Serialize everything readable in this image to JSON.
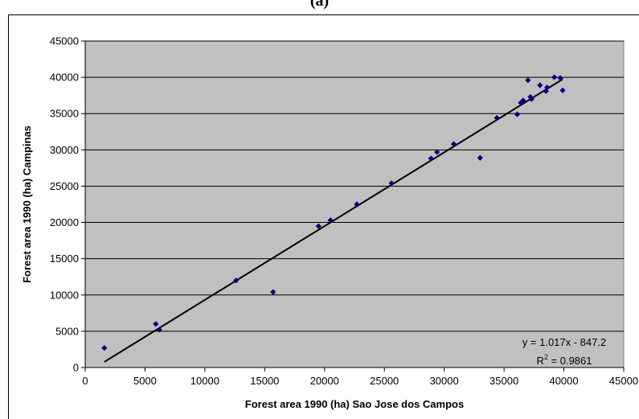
{
  "caption": "(a)",
  "chart_data": {
    "type": "scatter",
    "title": "",
    "xlabel": "Forest area 1990 (ha) Sao Jose dos Campos",
    "ylabel": "Forest area 1990 (ha) Campinas",
    "xlim": [
      0,
      45000
    ],
    "ylim": [
      0,
      45000
    ],
    "x_ticks": [
      0,
      5000,
      10000,
      15000,
      20000,
      25000,
      30000,
      35000,
      40000,
      45000
    ],
    "y_ticks": [
      0,
      5000,
      10000,
      15000,
      20000,
      25000,
      30000,
      35000,
      40000,
      45000
    ],
    "grid": "horizontal",
    "plot_background": "#c0c0c0",
    "marker_color": "#000080",
    "points": [
      {
        "x": 1600,
        "y": 2700
      },
      {
        "x": 5900,
        "y": 6000
      },
      {
        "x": 6200,
        "y": 5200
      },
      {
        "x": 12600,
        "y": 12000
      },
      {
        "x": 15700,
        "y": 10400
      },
      {
        "x": 19500,
        "y": 19500
      },
      {
        "x": 20500,
        "y": 20300
      },
      {
        "x": 22700,
        "y": 22500
      },
      {
        "x": 25600,
        "y": 25400
      },
      {
        "x": 28900,
        "y": 28800
      },
      {
        "x": 29400,
        "y": 29700
      },
      {
        "x": 30800,
        "y": 30800
      },
      {
        "x": 33000,
        "y": 28900
      },
      {
        "x": 34400,
        "y": 34400
      },
      {
        "x": 36100,
        "y": 34900
      },
      {
        "x": 36400,
        "y": 36500
      },
      {
        "x": 36600,
        "y": 36800
      },
      {
        "x": 37000,
        "y": 39600
      },
      {
        "x": 37200,
        "y": 37300
      },
      {
        "x": 37300,
        "y": 37000
      },
      {
        "x": 38000,
        "y": 38900
      },
      {
        "x": 38500,
        "y": 38100
      },
      {
        "x": 38600,
        "y": 38600
      },
      {
        "x": 39200,
        "y": 40000
      },
      {
        "x": 39700,
        "y": 39900
      },
      {
        "x": 39900,
        "y": 38200
      }
    ],
    "trendline": {
      "type": "linear",
      "x_range": [
        1600,
        39900
      ],
      "color": "#000000",
      "equation": "y = 1.017x - 847.2",
      "r2_prefix": "R",
      "r2_sup": "2",
      "r2_value": " = 0.9861"
    }
  }
}
